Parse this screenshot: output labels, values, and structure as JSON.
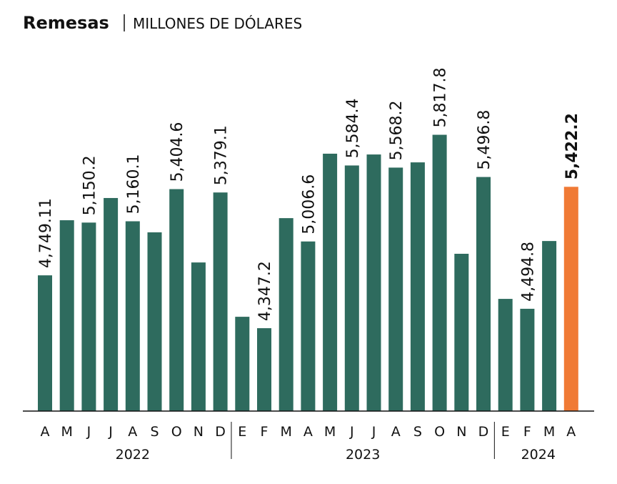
{
  "chart_data": {
    "type": "bar",
    "title": "Remesas",
    "subtitle": "MILLONES DE DÓLARES",
    "ylim": [
      3717,
      6000
    ],
    "groups": [
      {
        "label": "2022",
        "categories": [
          "A",
          "M",
          "J",
          "J",
          "A",
          "S",
          "O",
          "N",
          "D"
        ],
        "values": [
          4749.11,
          5168,
          5150.2,
          5337,
          5160.1,
          5076,
          5404.6,
          4847,
          5379.1
        ],
        "value_labels": [
          "4,749.11",
          null,
          "5,150.2",
          null,
          "5,160.1",
          null,
          "5,404.6",
          null,
          "5,379.1"
        ],
        "colors": [
          "#2e6b5e",
          "#2e6b5e",
          "#2e6b5e",
          "#2e6b5e",
          "#2e6b5e",
          "#2e6b5e",
          "#2e6b5e",
          "#2e6b5e",
          "#2e6b5e"
        ]
      },
      {
        "label": "2023",
        "categories": [
          "E",
          "F",
          "M",
          "A",
          "M",
          "J",
          "J",
          "A",
          "S",
          "O",
          "N",
          "D"
        ],
        "values": [
          4434,
          4347.2,
          5184,
          5006.6,
          5674,
          5584.4,
          5668,
          5568.2,
          5608,
          5817.8,
          4913,
          5496.8
        ],
        "value_labels": [
          null,
          "4,347.2",
          null,
          "5,006.6",
          null,
          "5,584.4",
          null,
          "5,568.2",
          null,
          "5,817.8",
          null,
          "5,496.8"
        ],
        "colors": [
          "#2e6b5e",
          "#2e6b5e",
          "#2e6b5e",
          "#2e6b5e",
          "#2e6b5e",
          "#2e6b5e",
          "#2e6b5e",
          "#2e6b5e",
          "#2e6b5e",
          "#2e6b5e",
          "#2e6b5e",
          "#2e6b5e"
        ]
      },
      {
        "label": "2024",
        "categories": [
          "E",
          "F",
          "M",
          "A"
        ],
        "values": [
          4570,
          4494.8,
          5010,
          5422.2
        ],
        "value_labels": [
          null,
          "4,494.8",
          null,
          "5,422.2"
        ],
        "colors": [
          "#2e6b5e",
          "#2e6b5e",
          "#2e6b5e",
          "#f07a35"
        ]
      }
    ]
  }
}
